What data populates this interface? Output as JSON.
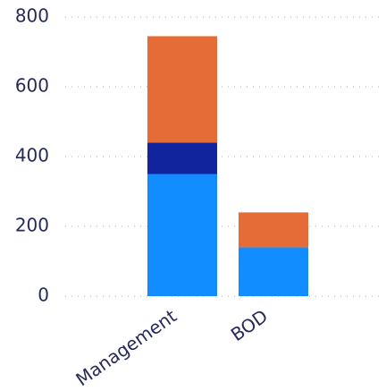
{
  "chart_data": {
    "type": "stacked_bar",
    "categories": [
      "Management",
      "BOD"
    ],
    "series": [
      {
        "color": "#118dff",
        "values": [
          350,
          140
        ]
      },
      {
        "color": "#12239e",
        "values": [
          90,
          0
        ]
      },
      {
        "color": "#e66c37",
        "values": [
          305,
          100
        ]
      }
    ],
    "ylim": [
      0,
      800
    ],
    "yticks": [
      0,
      200,
      400,
      600,
      800
    ],
    "grid": true
  }
}
